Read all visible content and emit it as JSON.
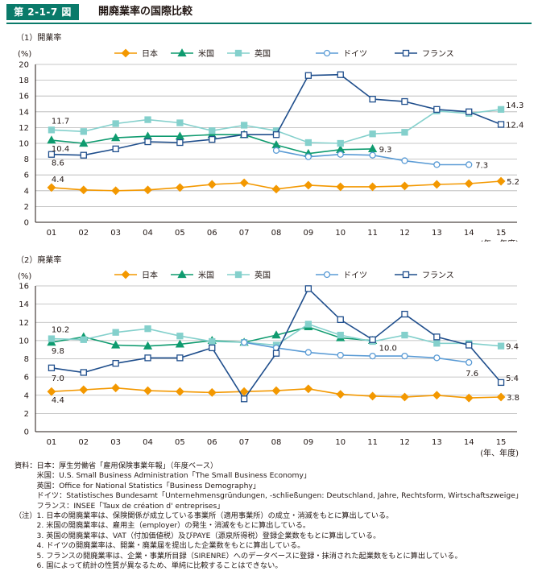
{
  "figure": {
    "badge": "第 2-1-7 図",
    "title": "開廃業率の国際比較"
  },
  "chart_data": [
    {
      "type": "line",
      "panel_label": "（1）開業率",
      "yunit": "(%)",
      "xlabel": "(年、年度)",
      "ylim": [
        0,
        20
      ],
      "yticks": [
        0,
        2,
        4,
        6,
        8,
        10,
        12,
        14,
        16,
        18,
        20
      ],
      "categories": [
        "01",
        "02",
        "03",
        "04",
        "05",
        "06",
        "07",
        "08",
        "09",
        "10",
        "11",
        "12",
        "13",
        "14",
        "15"
      ],
      "series": [
        {
          "name": "日本",
          "color": "#f39800",
          "marker": "diamond",
          "filled": true,
          "values": [
            4.4,
            4.1,
            4.0,
            4.1,
            4.4,
            4.8,
            5.0,
            4.2,
            4.7,
            4.5,
            4.5,
            4.6,
            4.8,
            4.9,
            5.2
          ]
        },
        {
          "name": "米国",
          "color": "#0f9b6f",
          "marker": "triangle",
          "filled": true,
          "values": [
            10.4,
            10.0,
            10.7,
            10.9,
            10.9,
            11.1,
            11.1,
            9.8,
            8.7,
            9.2,
            9.3,
            null,
            null,
            null,
            null
          ]
        },
        {
          "name": "英国",
          "color": "#84d0cc",
          "marker": "square",
          "filled": true,
          "values": [
            11.7,
            11.5,
            12.5,
            13.0,
            12.6,
            11.6,
            12.3,
            11.6,
            10.1,
            10.0,
            11.2,
            11.4,
            14.1,
            13.8,
            14.3
          ]
        },
        {
          "name": "ドイツ",
          "color": "#5a9bd5",
          "marker": "circle",
          "filled": false,
          "values": [
            null,
            null,
            null,
            null,
            null,
            null,
            null,
            9.1,
            8.3,
            8.6,
            8.5,
            7.8,
            7.3,
            7.3,
            null
          ]
        },
        {
          "name": "フランス",
          "color": "#1f4e8c",
          "marker": "square",
          "filled": false,
          "values": [
            8.6,
            8.5,
            9.3,
            10.2,
            10.1,
            10.5,
            11.1,
            11.1,
            18.6,
            18.7,
            15.6,
            15.3,
            14.3,
            14.0,
            12.4
          ]
        }
      ],
      "annotations": [
        "11.7",
        "10.4",
        "8.6",
        "4.4",
        "9.3",
        "7.3",
        "14.3",
        "12.4",
        "5.2"
      ]
    },
    {
      "type": "line",
      "panel_label": "（2）廃業率",
      "yunit": "(%)",
      "xlabel": "(年、年度)",
      "ylim": [
        0,
        16
      ],
      "yticks": [
        0,
        2,
        4,
        6,
        8,
        10,
        12,
        14,
        16
      ],
      "categories": [
        "01",
        "02",
        "03",
        "04",
        "05",
        "06",
        "07",
        "08",
        "09",
        "10",
        "11",
        "12",
        "13",
        "14",
        "15"
      ],
      "series": [
        {
          "name": "日本",
          "color": "#f39800",
          "marker": "diamond",
          "filled": true,
          "values": [
            4.4,
            4.6,
            4.8,
            4.5,
            4.4,
            4.3,
            4.4,
            4.5,
            4.7,
            4.1,
            3.9,
            3.8,
            4.0,
            3.7,
            3.8
          ]
        },
        {
          "name": "米国",
          "color": "#0f9b6f",
          "marker": "triangle",
          "filled": true,
          "values": [
            9.8,
            10.4,
            9.5,
            9.4,
            9.6,
            10.0,
            9.8,
            10.6,
            11.5,
            10.3,
            10.0,
            null,
            null,
            null,
            null
          ]
        },
        {
          "name": "英国",
          "color": "#84d0cc",
          "marker": "square",
          "filled": true,
          "values": [
            10.2,
            10.1,
            10.9,
            11.3,
            10.5,
            9.9,
            9.8,
            9.5,
            11.8,
            10.6,
            9.9,
            10.6,
            9.7,
            9.7,
            9.4
          ]
        },
        {
          "name": "ドイツ",
          "color": "#5a9bd5",
          "marker": "circle",
          "filled": false,
          "values": [
            null,
            null,
            null,
            null,
            null,
            null,
            9.8,
            9.2,
            8.7,
            8.4,
            8.3,
            8.3,
            8.1,
            7.6,
            null
          ]
        },
        {
          "name": "フランス",
          "color": "#1f4e8c",
          "marker": "square",
          "filled": false,
          "values": [
            7.0,
            6.5,
            7.5,
            8.1,
            8.1,
            9.2,
            3.6,
            8.6,
            15.7,
            12.3,
            10.1,
            12.9,
            10.4,
            9.5,
            5.4
          ]
        }
      ],
      "annotations": [
        "10.2",
        "9.8",
        "7.0",
        "4.4",
        "10.0",
        "7.6",
        "9.4",
        "5.4",
        "3.8"
      ]
    }
  ],
  "notes": [
    "資料：日本：厚生労働省「雇用保険事業年報」（年度ベース）",
    "　　　米国：U.S. Small Business Administration「The Small Business Economy」",
    "　　　英国：Office for National Statistics「Business Demography」",
    "　　　ドイツ：Statistisches Bundesamt「Unternehmensgründungen, -schließungen: Deutschland, Jahre, Rechtsform, Wirtschaftszweige」",
    "　　　フランス：INSEE「Taux de création d' entreprises」",
    "（注）1. 日本の開廃業率は、保険関係が成立している事業所（適用事業所）の成立・消滅をもとに算出している。",
    "　　　2. 米国の開廃業率は、雇用主（employer）の発生・消滅をもとに算出している。",
    "　　　3. 英国の開廃業率は、VAT（付加価値税）及びPAYE（源泉所得税）登録企業数をもとに算出している。",
    "　　　4. ドイツの開廃業率は、開業・廃業届を提出した企業数をもとに算出している。",
    "　　　5. フランスの開廃業率は、企業・事業所目録（SIRENRE）へのデータベースに登録・抹消された起業数をもとに算出している。",
    "　　　6. 国によって統計の性質が異なるため、単純に比較することはできない。"
  ]
}
